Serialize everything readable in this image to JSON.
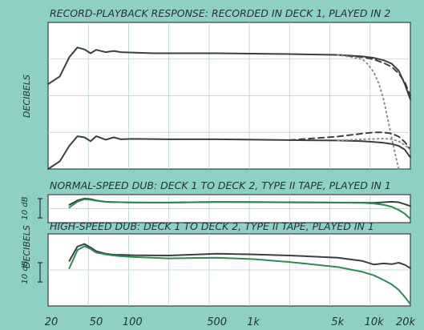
{
  "chart_data": [
    {
      "type": "line",
      "title": "RECORD-PLAYBACK RESPONSE: RECORDED IN DECK 1, PLAYED IN 2",
      "ylabel": "DECIBELS",
      "x_scale": "log",
      "xlim": [
        20,
        20000
      ],
      "ylim": [
        -30,
        8
      ],
      "grid": true,
      "legend": "none",
      "series": [
        {
          "style": "solid",
          "color": "#3a3f44",
          "x": [
            20,
            25,
            30,
            35,
            40,
            45,
            50,
            60,
            70,
            80,
            100,
            150,
            200,
            500,
            1000,
            2000,
            5000,
            8000,
            10000,
            12000,
            14000,
            16000,
            18000,
            20000
          ],
          "y": [
            -8,
            -6,
            -1,
            1.5,
            1,
            0,
            0.9,
            0.3,
            0.6,
            0.3,
            0.2,
            0,
            0,
            0,
            -0.1,
            -0.2,
            -0.4,
            -0.8,
            -1.2,
            -1.8,
            -2.7,
            -4.5,
            -8,
            -12
          ]
        },
        {
          "style": "dashed",
          "color": "#3a3f44",
          "x": [
            5000,
            8000,
            10000,
            12000,
            14000,
            16000,
            18000,
            20000
          ],
          "y": [
            -0.4,
            -1,
            -1.6,
            -2.5,
            -3.5,
            -5.2,
            -7.5,
            -11
          ]
        },
        {
          "style": "dotted",
          "color": "#8a8f92",
          "x": [
            5000,
            8000,
            9000,
            10000,
            11000,
            12000,
            13000,
            14000,
            16000
          ],
          "y": [
            -0.4,
            -1.5,
            -3,
            -5,
            -8,
            -12,
            -17,
            -22,
            -30
          ]
        },
        {
          "style": "solid",
          "color": "#3a3f44",
          "x": [
            20,
            25,
            30,
            35,
            40,
            45,
            50,
            60,
            70,
            80,
            100,
            200,
            500,
            1000,
            2000,
            5000,
            8000,
            10000,
            12000,
            14000,
            16000,
            18000,
            20000
          ],
          "y": [
            -30,
            -28,
            -24,
            -21.5,
            -21.8,
            -22.8,
            -21.5,
            -22.4,
            -21.8,
            -22.3,
            -22.2,
            -22.3,
            -22.3,
            -22.4,
            -22.5,
            -22.6,
            -22.8,
            -23,
            -23.2,
            -23.5,
            -24,
            -25,
            -27
          ]
        },
        {
          "style": "dashed",
          "color": "#3a3f44",
          "x": [
            2000,
            5000,
            8000,
            10000,
            12000,
            14000,
            16000,
            18000,
            20000
          ],
          "y": [
            -22.5,
            -21.6,
            -20.8,
            -20.5,
            -20.5,
            -20.8,
            -21.6,
            -23,
            -25
          ]
        },
        {
          "style": "dotted",
          "color": "#8a8f92",
          "x": [
            5000,
            8000,
            10000,
            12000,
            14000,
            16000,
            18000,
            20000
          ],
          "y": [
            -22.6,
            -22.3,
            -22.2,
            -22.1,
            -22.3,
            -22.8,
            -23.8,
            -25
          ]
        }
      ]
    },
    {
      "type": "line",
      "title": "NORMAL-SPEED DUB: DECK 1 TO DECK 2, TYPE II TAPE, PLAYED IN 1",
      "ylabel": "DECIBELS",
      "scale_label": "10 dB",
      "x_scale": "log",
      "xlim": [
        20,
        20000
      ],
      "ylim": [
        -16,
        6
      ],
      "grid": true,
      "legend": "none",
      "series": [
        {
          "style": "solid",
          "color": "#3a3f44",
          "x": [
            30,
            35,
            40,
            45,
            50,
            60,
            70,
            80,
            100,
            200,
            500,
            1000,
            2000,
            5000,
            8000,
            10000,
            12000,
            14000,
            16000,
            18000,
            20000
          ],
          "y": [
            -2,
            1.5,
            3,
            2.5,
            1.5,
            0.4,
            0.2,
            0,
            -0.1,
            -0.2,
            0.3,
            0.2,
            0,
            -0.2,
            -0.3,
            -0.4,
            0,
            0.4,
            0,
            -1.5,
            -3
          ]
        },
        {
          "style": "solid",
          "color": "#2d8a55",
          "x": [
            30,
            35,
            40,
            45,
            50,
            60,
            70,
            80,
            100,
            200,
            500,
            1000,
            2000,
            5000,
            8000,
            10000,
            12000,
            14000,
            16000,
            18000,
            20000
          ],
          "y": [
            -4,
            0.5,
            2.4,
            2,
            1.2,
            0.3,
            0.1,
            0,
            -0.2,
            -0.3,
            0.2,
            0.1,
            -0.1,
            -0.3,
            -0.5,
            -1,
            -2,
            -3.5,
            -6,
            -9,
            -13
          ]
        }
      ]
    },
    {
      "type": "line",
      "title": "HIGH-SPEED DUB: DECK 1 TO DECK 2, TYPE II TAPE, PLAYED IN 1",
      "scale_label": "10 dB",
      "x_scale": "log",
      "xlim": [
        20,
        20000
      ],
      "ylim": [
        -14,
        6
      ],
      "grid": true,
      "legend": "none",
      "x_tick_labels": [
        "20",
        "50",
        "100",
        "500",
        "1k",
        "5k",
        "10k",
        "20k"
      ],
      "x_tick_values": [
        20,
        50,
        100,
        500,
        1000,
        5000,
        10000,
        20000
      ],
      "series": [
        {
          "style": "solid",
          "color": "#3a3f44",
          "x": [
            30,
            35,
            40,
            45,
            50,
            60,
            70,
            80,
            100,
            200,
            500,
            1000,
            2000,
            5000,
            8000,
            10000,
            12000,
            14000,
            16000,
            18000,
            20000
          ],
          "y": [
            -1.5,
            2.5,
            3.2,
            2.2,
            1.2,
            0.5,
            0.2,
            0.2,
            0.1,
            0,
            0.5,
            0.3,
            0,
            -0.6,
            -1.5,
            -2.5,
            -2.2,
            -2.4,
            -2,
            -2.6,
            -3.5
          ]
        },
        {
          "style": "solid",
          "color": "#2d8a55",
          "x": [
            30,
            35,
            40,
            45,
            50,
            60,
            70,
            80,
            100,
            200,
            500,
            1000,
            2000,
            5000,
            8000,
            10000,
            12000,
            14000,
            16000,
            18000,
            20000
          ],
          "y": [
            -3.5,
            1.5,
            2.6,
            1.8,
            0.8,
            0.3,
            0,
            -0.2,
            -0.4,
            -0.8,
            -0.6,
            -1,
            -1.8,
            -3.2,
            -4.5,
            -5.5,
            -6.8,
            -8,
            -9.5,
            -11.5,
            -13.5
          ]
        }
      ]
    }
  ]
}
